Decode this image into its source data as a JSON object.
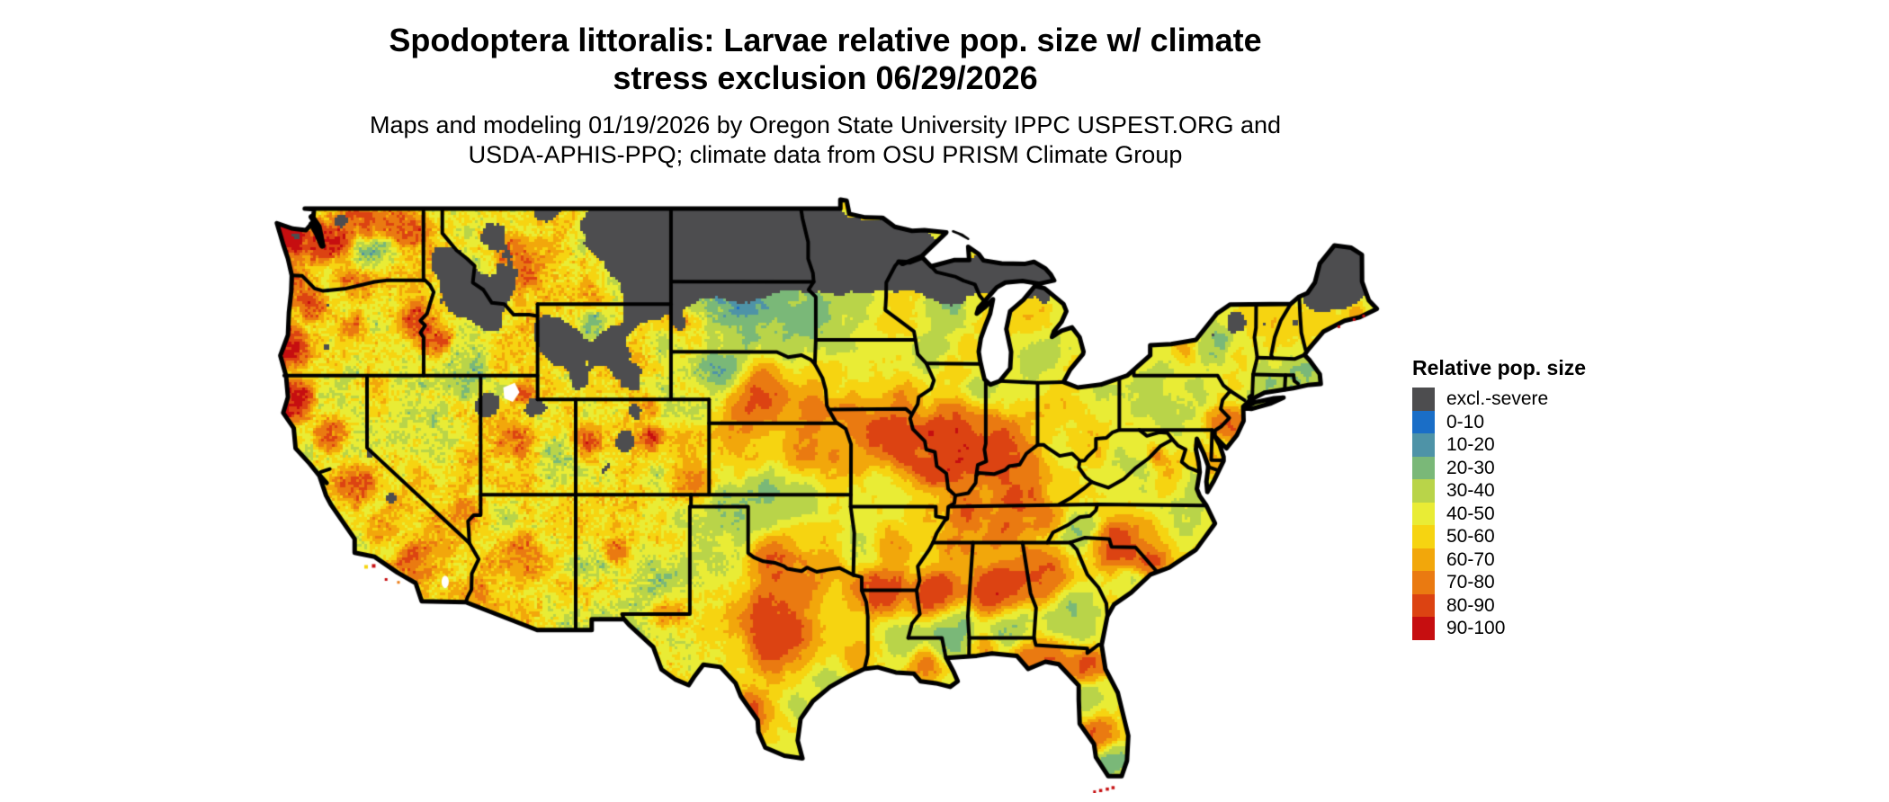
{
  "title": {
    "line1": "Spodoptera littoralis: Larvae relative pop. size w/ climate",
    "line2": "stress exclusion 06/29/2026"
  },
  "subtitle": {
    "line1": "Maps and modeling 01/19/2026 by Oregon State University IPPC USPEST.ORG and",
    "line2": "USDA-APHIS-PPQ; climate data from OSU PRISM Climate Group"
  },
  "legend": {
    "title": "Relative pop. size",
    "entries": [
      {
        "label": "excl.-severe",
        "color": "#4d4d4f"
      },
      {
        "label": "0-10",
        "color": "#1a6ec7"
      },
      {
        "label": "10-20",
        "color": "#4e93a7"
      },
      {
        "label": "20-30",
        "color": "#7ab878"
      },
      {
        "label": "30-40",
        "color": "#b9d449"
      },
      {
        "label": "40-50",
        "color": "#e9ec35"
      },
      {
        "label": "50-60",
        "color": "#f6d411"
      },
      {
        "label": "60-70",
        "color": "#f2a70b"
      },
      {
        "label": "70-80",
        "color": "#ea7a11"
      },
      {
        "label": "80-90",
        "color": "#dc4312"
      },
      {
        "label": "90-100",
        "color": "#c60e10"
      }
    ]
  },
  "map": {
    "region": "Continental United States",
    "kind": "raster choropleth of relative population size with state boundaries",
    "boundary_color": "#000000",
    "water_background": "#ffffff"
  }
}
